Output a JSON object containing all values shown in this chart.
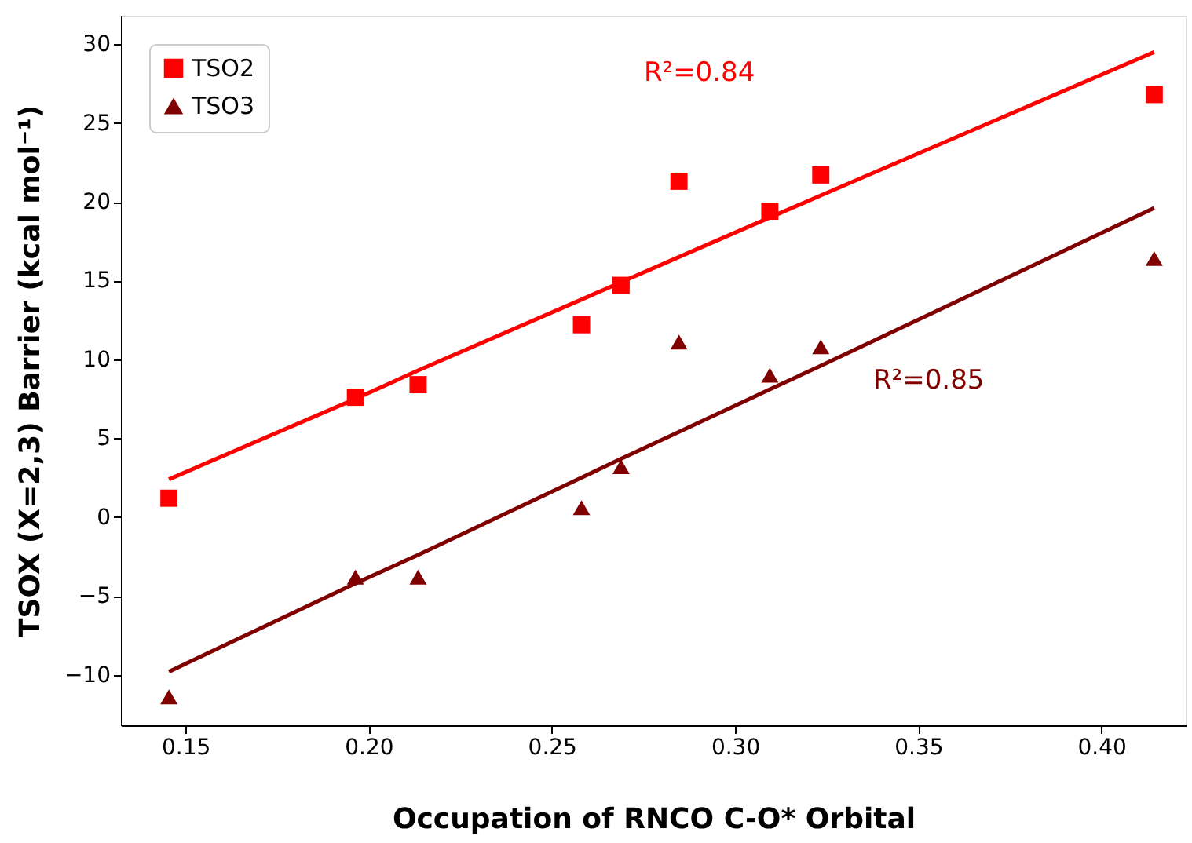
{
  "chart_data": {
    "type": "scatter",
    "xlabel": "Occupation of RNCO C-O* Orbital",
    "ylabel": "TSOX (X=2,3) Barrier (kcal mol⁻¹)",
    "x": [
      0.1455,
      0.1964,
      0.2135,
      0.2581,
      0.2689,
      0.2847,
      0.3095,
      0.3234,
      0.4144
    ],
    "series": [
      {
        "name": "TSO2",
        "color": "#ff0000",
        "marker": "square",
        "values": [
          1.2,
          7.6,
          8.4,
          12.2,
          14.7,
          21.3,
          19.4,
          21.7,
          26.8
        ]
      },
      {
        "name": "TSO3",
        "color": "#800000",
        "marker": "triangle",
        "values": [
          -11.4,
          -3.8,
          -3.8,
          0.6,
          3.2,
          11.1,
          9.0,
          10.8,
          16.4
        ]
      },
      {
        "type": "line",
        "color": "#ff0000",
        "values": [
          2.4,
          7.5,
          9.3,
          13.8,
          14.9,
          16.5,
          19.0,
          20.4,
          29.5
        ]
      },
      {
        "type": "line",
        "color": "#800000",
        "values": [
          -9.8,
          -4.2,
          -2.4,
          2.5,
          3.7,
          5.4,
          8.1,
          9.6,
          19.6
        ]
      }
    ],
    "annotations": [
      "R²=0.84",
      "R²=0.85"
    ],
    "xlim": [
      0.1324,
      0.423
    ],
    "ylim": [
      -13.2,
      31.8
    ],
    "xticks": [
      {
        "value": 0.15,
        "label": "0.15"
      },
      {
        "value": 0.2,
        "label": "0.20"
      },
      {
        "value": 0.25,
        "label": "0.25"
      },
      {
        "value": 0.3,
        "label": "0.30"
      },
      {
        "value": 0.35,
        "label": "0.35"
      },
      {
        "value": 0.4,
        "label": "0.40"
      }
    ],
    "yticks": [
      {
        "value": -10,
        "label": "−10"
      },
      {
        "value": -5,
        "label": "−5"
      },
      0,
      5,
      10,
      15,
      20,
      25,
      30
    ],
    "legend": "top left",
    "grid": false
  }
}
